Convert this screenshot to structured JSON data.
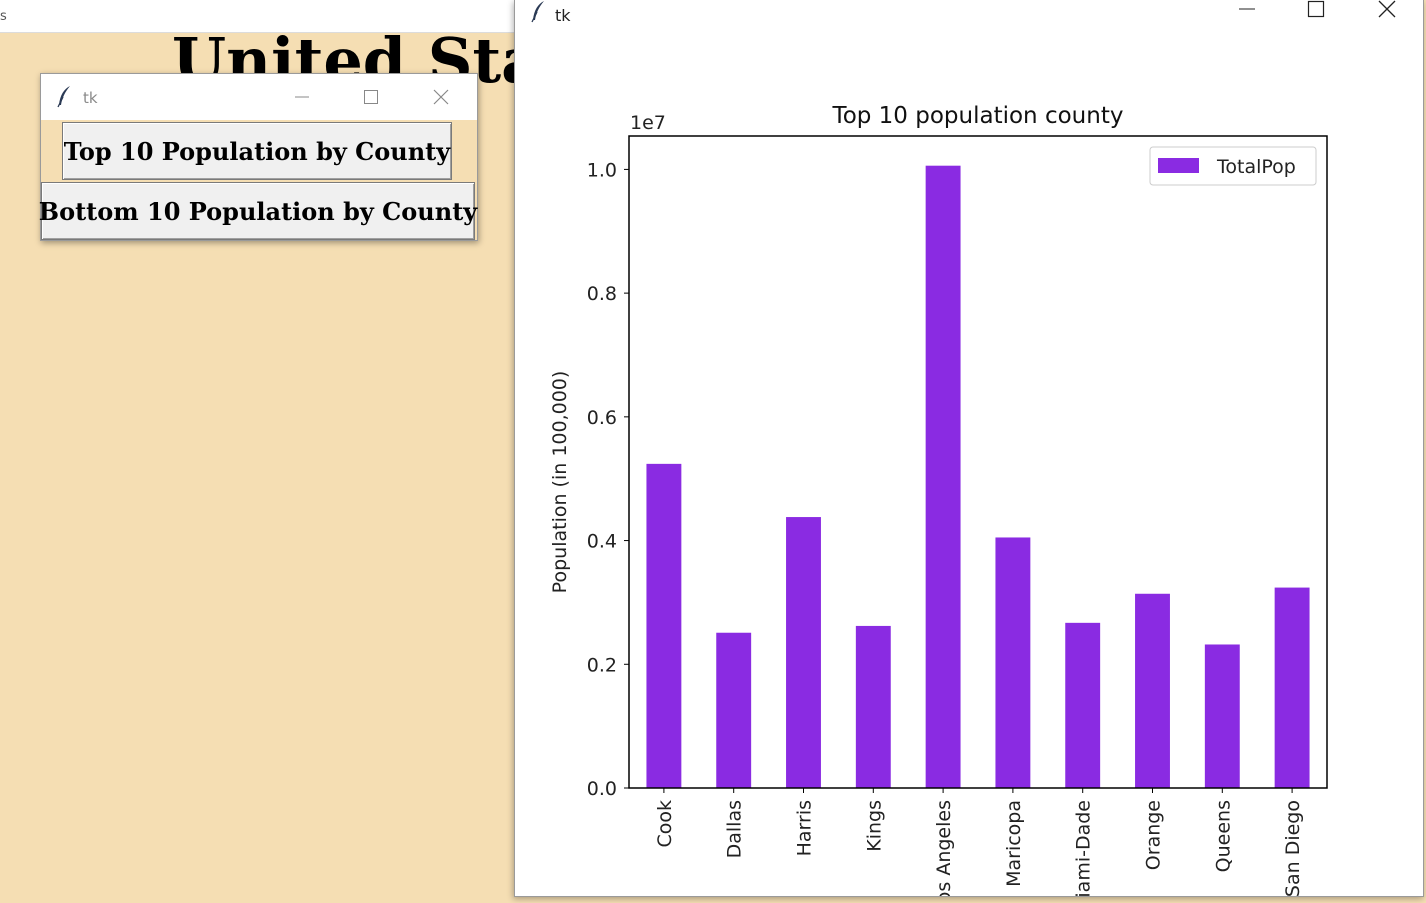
{
  "background_window": {
    "title_fragment": "s",
    "heading_fragment": "United Stat"
  },
  "buttons_window": {
    "title": "tk",
    "top_button": "Top 10 Population by County",
    "bottom_button": "Bottom 10 Population by County"
  },
  "chart_window": {
    "title": "tk"
  },
  "colors": {
    "bar": "#8a2be2",
    "background": "#f5deb3"
  },
  "chart_data": {
    "type": "bar",
    "title": "Top 10 population county",
    "ylabel": "Population (in 100,000)",
    "xlabel": "",
    "offset_label": "1e7",
    "categories": [
      "Cook",
      "Dallas",
      "Harris",
      "Kings",
      "Los Angeles",
      "Maricopa",
      "Miami-Dade",
      "Orange",
      "Queens",
      "San Diego"
    ],
    "series": [
      {
        "name": "TotalPop",
        "values": [
          5240000,
          2510000,
          4380000,
          2620000,
          10060000,
          4050000,
          2670000,
          3140000,
          2320000,
          3240000
        ]
      }
    ],
    "yticks": [
      "0.0",
      "0.2",
      "0.4",
      "0.6",
      "0.8",
      "1.0"
    ],
    "ylim": [
      0,
      10540000
    ],
    "legend_position": "top-right",
    "grid": false
  }
}
